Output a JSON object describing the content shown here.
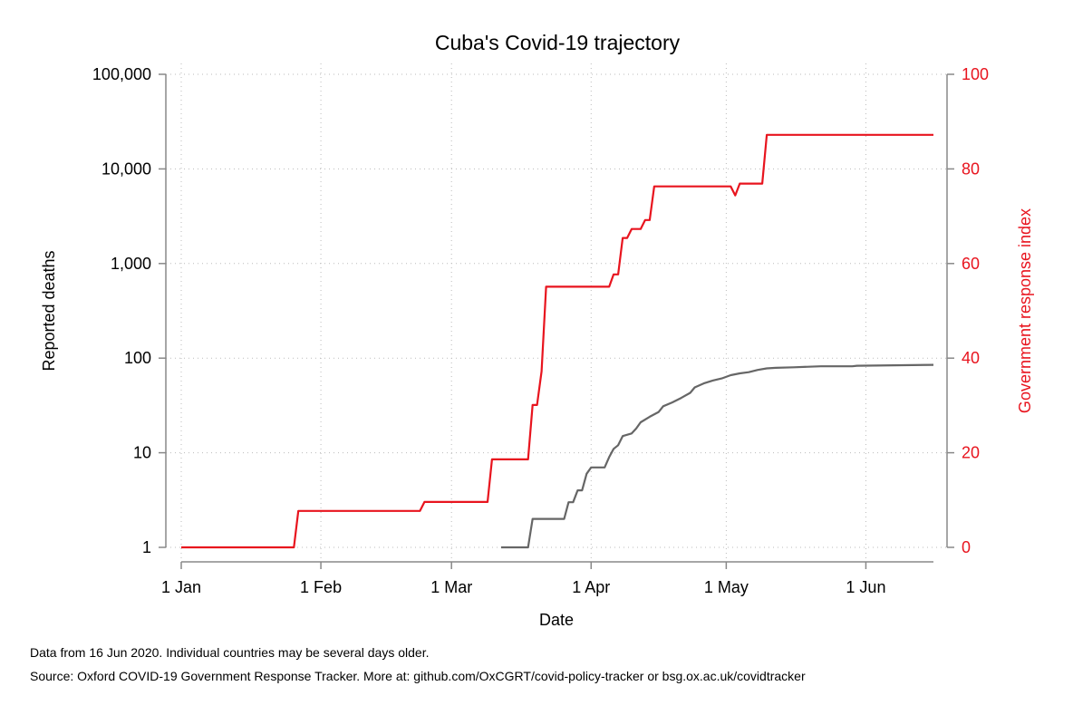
{
  "chart_data": {
    "type": "line",
    "title": "Cuba's Covid-19 trajectory",
    "xlabel": "Date",
    "ylabel_left": "Reported deaths",
    "ylabel_right": "Government response index",
    "x_ticks": [
      "1 Jan",
      "1 Feb",
      "1 Mar",
      "1 Apr",
      "1 May",
      "1 Jun"
    ],
    "x_range": [
      "2020-01-01",
      "2020-06-16"
    ],
    "left_axis": {
      "scale": "log",
      "range": [
        1,
        100000
      ],
      "ticks": [
        1,
        10,
        100,
        1000,
        10000,
        100000
      ],
      "tick_labels": [
        "1",
        "10",
        "100",
        "1,000",
        "10,000",
        "100,000"
      ]
    },
    "right_axis": {
      "scale": "linear",
      "range": [
        0,
        100
      ],
      "ticks": [
        0,
        20,
        40,
        60,
        80,
        100
      ],
      "tick_labels": [
        "0",
        "20",
        "40",
        "60",
        "80",
        "100"
      ],
      "color": "#e8141e"
    },
    "grid": true,
    "series": [
      {
        "axis": "right",
        "color": "#e8141e",
        "points": [
          [
            "2020-01-01",
            0
          ],
          [
            "2020-01-26",
            0
          ],
          [
            "2020-01-27",
            7.7
          ],
          [
            "2020-02-23",
            7.7
          ],
          [
            "2020-02-24",
            9.6
          ],
          [
            "2020-03-09",
            9.6
          ],
          [
            "2020-03-10",
            18.6
          ],
          [
            "2020-03-18",
            18.6
          ],
          [
            "2020-03-19",
            30.1
          ],
          [
            "2020-03-20",
            30.1
          ],
          [
            "2020-03-21",
            37.2
          ],
          [
            "2020-03-22",
            55.1
          ],
          [
            "2020-04-05",
            55.1
          ],
          [
            "2020-04-06",
            57.7
          ],
          [
            "2020-04-07",
            57.7
          ],
          [
            "2020-04-08",
            65.4
          ],
          [
            "2020-04-09",
            65.4
          ],
          [
            "2020-04-10",
            67.3
          ],
          [
            "2020-04-12",
            67.3
          ],
          [
            "2020-04-13",
            69.2
          ],
          [
            "2020-04-14",
            69.2
          ],
          [
            "2020-04-15",
            76.3
          ],
          [
            "2020-05-02",
            76.3
          ],
          [
            "2020-05-03",
            74.4
          ],
          [
            "2020-05-04",
            76.9
          ],
          [
            "2020-05-09",
            76.9
          ],
          [
            "2020-05-10",
            87.2
          ],
          [
            "2020-06-16",
            87.2
          ]
        ]
      },
      {
        "axis": "left",
        "color": "#666666",
        "points": [
          [
            "2020-03-12",
            1
          ],
          [
            "2020-03-18",
            1
          ],
          [
            "2020-03-19",
            2
          ],
          [
            "2020-03-26",
            2
          ],
          [
            "2020-03-27",
            3
          ],
          [
            "2020-03-28",
            3
          ],
          [
            "2020-03-29",
            4
          ],
          [
            "2020-03-30",
            4
          ],
          [
            "2020-03-31",
            6
          ],
          [
            "2020-04-01",
            7
          ],
          [
            "2020-04-04",
            7
          ],
          [
            "2020-04-05",
            9
          ],
          [
            "2020-04-06",
            11
          ],
          [
            "2020-04-07",
            12
          ],
          [
            "2020-04-08",
            15
          ],
          [
            "2020-04-10",
            16
          ],
          [
            "2020-04-11",
            18
          ],
          [
            "2020-04-12",
            21
          ],
          [
            "2020-04-14",
            24
          ],
          [
            "2020-04-16",
            27
          ],
          [
            "2020-04-17",
            31
          ],
          [
            "2020-04-19",
            34
          ],
          [
            "2020-04-21",
            38
          ],
          [
            "2020-04-23",
            43
          ],
          [
            "2020-04-24",
            49
          ],
          [
            "2020-04-26",
            54
          ],
          [
            "2020-04-28",
            58
          ],
          [
            "2020-04-30",
            61
          ],
          [
            "2020-05-02",
            66
          ],
          [
            "2020-05-04",
            69
          ],
          [
            "2020-05-06",
            71
          ],
          [
            "2020-05-08",
            75
          ],
          [
            "2020-05-10",
            78
          ],
          [
            "2020-05-12",
            79
          ],
          [
            "2020-05-16",
            80
          ],
          [
            "2020-05-22",
            82
          ],
          [
            "2020-05-29",
            82
          ],
          [
            "2020-05-30",
            83
          ],
          [
            "2020-06-16",
            85
          ]
        ]
      }
    ]
  },
  "notes": {
    "line1": "Data from 16 Jun 2020. Individual countries may be several days older.",
    "line2": "Source: Oxford COVID-19 Government Response Tracker. More at: github.com/OxCGRT/covid-policy-tracker or bsg.ox.ac.uk/covidtracker"
  }
}
